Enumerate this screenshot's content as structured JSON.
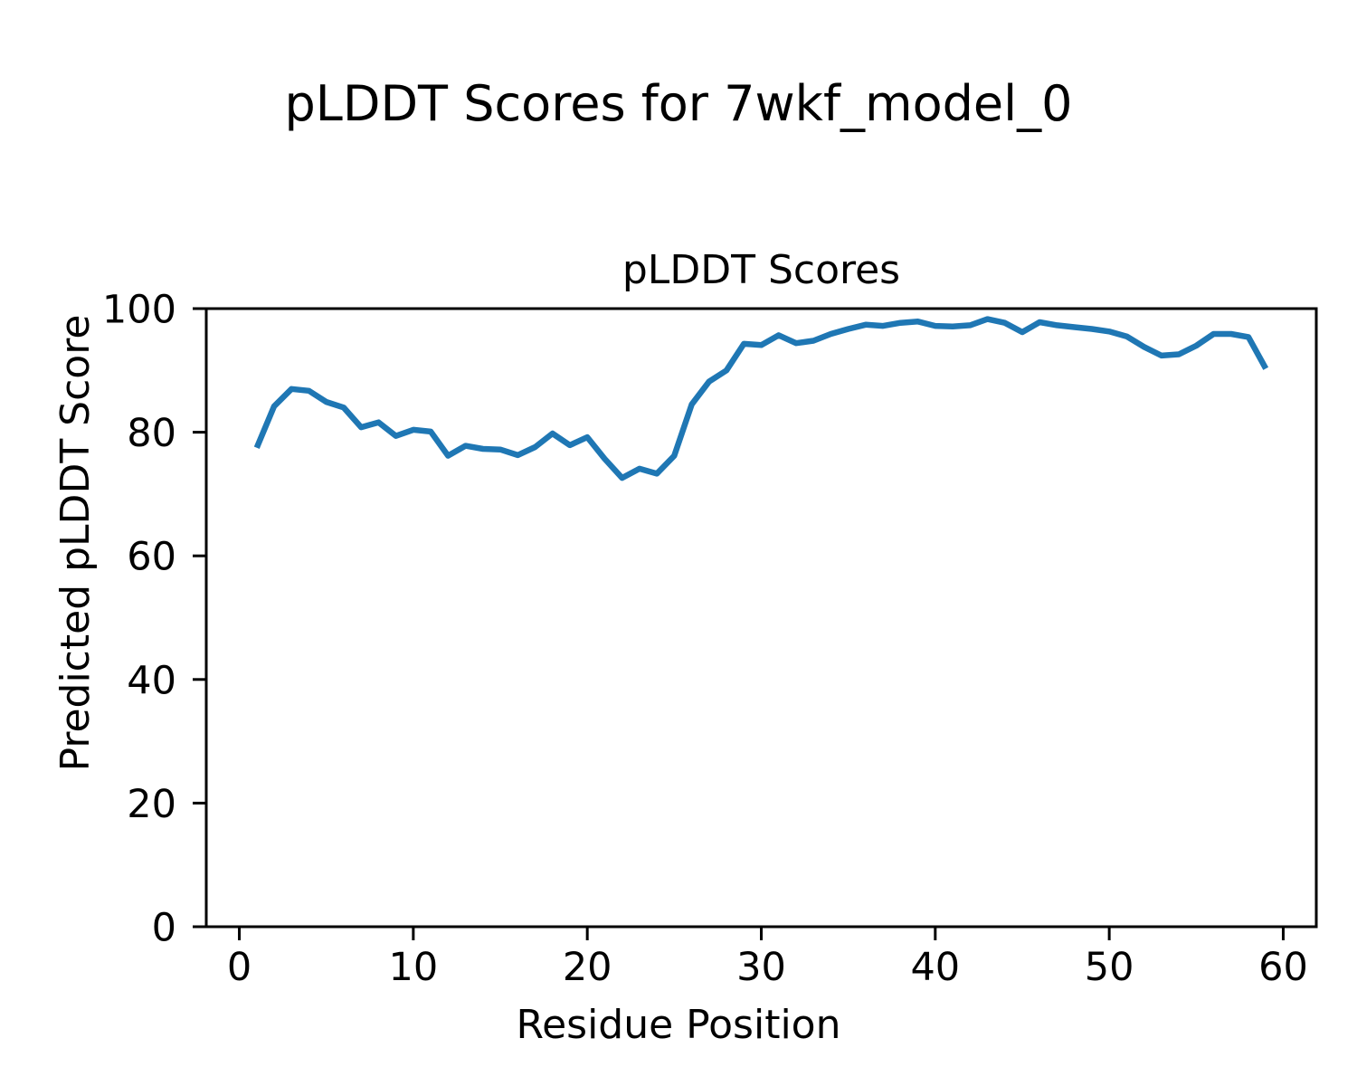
{
  "figure": {
    "title": "pLDDT Scores for 7wkf_model_0"
  },
  "chart_data": {
    "type": "line",
    "title": "pLDDT Scores",
    "xlabel": "Residue Position",
    "ylabel": "Predicted pLDDT Score",
    "grid": false,
    "legend": "none",
    "line_color": "#1f77b4",
    "line_width": 6.5,
    "xlim": [
      -1.9,
      61.9
    ],
    "ylim": [
      0,
      100
    ],
    "xticks": [
      0,
      10,
      20,
      30,
      40,
      50,
      60
    ],
    "yticks": [
      0,
      20,
      40,
      60,
      80,
      100
    ],
    "x": [
      1,
      2,
      3,
      4,
      5,
      6,
      7,
      8,
      9,
      10,
      11,
      12,
      13,
      14,
      15,
      16,
      17,
      18,
      19,
      20,
      21,
      22,
      23,
      24,
      25,
      26,
      27,
      28,
      29,
      30,
      31,
      32,
      33,
      34,
      35,
      36,
      37,
      38,
      39,
      40,
      41,
      42,
      43,
      44,
      45,
      46,
      47,
      48,
      49,
      50,
      51,
      52,
      53,
      54,
      55,
      56,
      57,
      58,
      59
    ],
    "y": [
      77.5,
      84.2,
      87.0,
      86.7,
      84.9,
      84.0,
      80.8,
      81.6,
      79.4,
      80.4,
      80.1,
      76.2,
      77.8,
      77.3,
      77.2,
      76.3,
      77.6,
      79.8,
      77.9,
      79.2,
      75.7,
      72.6,
      74.1,
      73.3,
      76.2,
      84.5,
      88.2,
      90.0,
      94.3,
      94.1,
      95.7,
      94.4,
      94.8,
      95.9,
      96.7,
      97.4,
      97.2,
      97.7,
      97.9,
      97.2,
      97.1,
      97.3,
      98.3,
      97.7,
      96.2,
      97.8,
      97.3,
      97.0,
      96.7,
      96.3,
      95.5,
      93.8,
      92.4,
      92.6,
      94.0,
      95.9,
      95.9,
      95.4,
      90.3
    ]
  }
}
